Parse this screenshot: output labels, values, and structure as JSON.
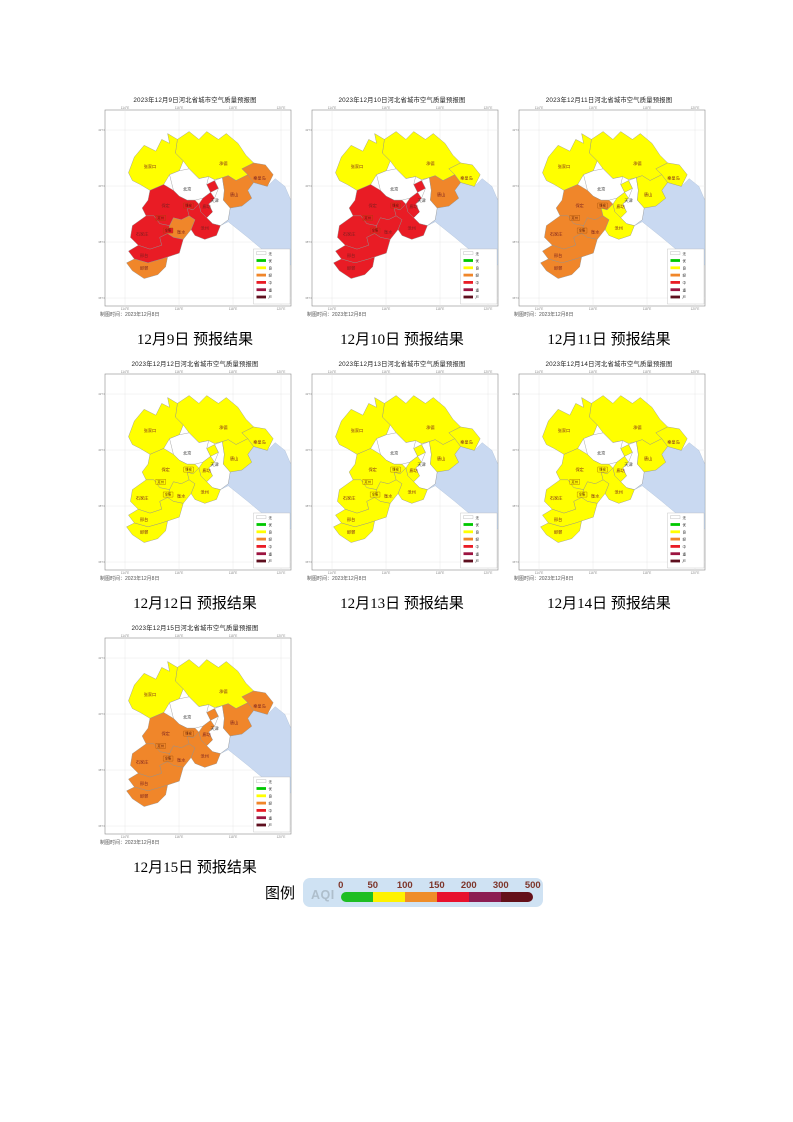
{
  "page": {
    "background": "#ffffff"
  },
  "level_colors": {
    "无": "#ffffff",
    "优": "#00c800",
    "良": "#ffff00",
    "轻度": "#f0862a",
    "中度": "#e91c25",
    "重度": "#9c1440",
    "严重": "#5e0f1e"
  },
  "map_common": {
    "note": "制图时间：2023年12月8日",
    "x_ticks": [
      "114°E",
      "116°E",
      "118°E",
      "120°E"
    ],
    "y_ticks": [
      "42°N",
      "40°N",
      "38°N",
      "36°N"
    ],
    "sea_color": "#c9d9f1",
    "label_color": "#7a1f1f",
    "capital_label_color": "#333333",
    "mini_legend": [
      {
        "label": "无",
        "color": "#ffffff"
      },
      {
        "label": "优",
        "color": "#00c800"
      },
      {
        "label": "良",
        "color": "#ffff00"
      },
      {
        "label": "轻",
        "color": "#f0862a"
      },
      {
        "label": "中",
        "color": "#e91c25"
      },
      {
        "label": "重",
        "color": "#9c1440"
      },
      {
        "label": "严",
        "color": "#5e0f1e"
      }
    ],
    "regions": [
      {
        "id": "zhangjiakou",
        "label": "张家口"
      },
      {
        "id": "chengde",
        "label": "承德"
      },
      {
        "id": "beijing",
        "label": "北京",
        "capital": true
      },
      {
        "id": "tianjin",
        "label": "天津",
        "capital": true
      },
      {
        "id": "tangshan",
        "label": "唐山"
      },
      {
        "id": "qinhuangdao",
        "label": "秦皇岛"
      },
      {
        "id": "langfang",
        "label": "廊坊"
      },
      {
        "id": "baoding",
        "label": "保定"
      },
      {
        "id": "xiongan",
        "label": "雄安",
        "boxed": true
      },
      {
        "id": "dingzhou",
        "label": "定州",
        "boxed": true
      },
      {
        "id": "shijiazhuang",
        "label": "石家庄"
      },
      {
        "id": "xinji",
        "label": "辛集",
        "boxed": true
      },
      {
        "id": "hengshui",
        "label": "衡水"
      },
      {
        "id": "cangzhou",
        "label": "沧州"
      },
      {
        "id": "xingtai",
        "label": "邢台"
      },
      {
        "id": "handan",
        "label": "邯郸"
      }
    ]
  },
  "maps": [
    {
      "title": "2023年12月9日河北省城市空气质量预报图",
      "caption": "12月9日 预报结果",
      "levels": {
        "zhangjiakou": "良",
        "chengde": "良",
        "beijing": "无",
        "tianjin": "无",
        "tangshan": "轻度",
        "qinhuangdao": "轻度",
        "langfang": "中度",
        "baoding": "中度",
        "xiongan": "中度",
        "dingzhou": "中度",
        "shijiazhuang": "中度",
        "xinji": "中度",
        "hengshui": "轻度",
        "cangzhou": "中度",
        "xingtai": "中度",
        "handan": "轻度"
      }
    },
    {
      "title": "2023年12月10日河北省城市空气质量预报图",
      "caption": "12月10日 预报结果",
      "levels": {
        "zhangjiakou": "良",
        "chengde": "良",
        "beijing": "无",
        "tianjin": "无",
        "tangshan": "轻度",
        "qinhuangdao": "良",
        "langfang": "中度",
        "baoding": "中度",
        "xiongan": "中度",
        "dingzhou": "中度",
        "shijiazhuang": "中度",
        "xinji": "中度",
        "hengshui": "中度",
        "cangzhou": "中度",
        "xingtai": "中度",
        "handan": "中度"
      }
    },
    {
      "title": "2023年12月11日河北省城市空气质量预报图",
      "caption": "12月11日 预报结果",
      "levels": {
        "zhangjiakou": "良",
        "chengde": "良",
        "beijing": "无",
        "tianjin": "无",
        "tangshan": "良",
        "qinhuangdao": "良",
        "langfang": "良",
        "baoding": "轻度",
        "xiongan": "轻度",
        "dingzhou": "轻度",
        "shijiazhuang": "轻度",
        "xinji": "轻度",
        "hengshui": "轻度",
        "cangzhou": "良",
        "xingtai": "轻度",
        "handan": "轻度"
      }
    },
    {
      "title": "2023年12月12日河北省城市空气质量预报图",
      "caption": "12月12日 预报结果",
      "levels": {
        "zhangjiakou": "良",
        "chengde": "良",
        "beijing": "无",
        "tianjin": "无",
        "tangshan": "良",
        "qinhuangdao": "良",
        "langfang": "良",
        "baoding": "良",
        "xiongan": "良",
        "dingzhou": "良",
        "shijiazhuang": "良",
        "xinji": "良",
        "hengshui": "良",
        "cangzhou": "良",
        "xingtai": "良",
        "handan": "良"
      }
    },
    {
      "title": "2023年12月13日河北省城市空气质量预报图",
      "caption": "12月13日 预报结果",
      "levels": {
        "zhangjiakou": "良",
        "chengde": "良",
        "beijing": "无",
        "tianjin": "无",
        "tangshan": "良",
        "qinhuangdao": "良",
        "langfang": "良",
        "baoding": "良",
        "xiongan": "良",
        "dingzhou": "良",
        "shijiazhuang": "良",
        "xinji": "良",
        "hengshui": "良",
        "cangzhou": "良",
        "xingtai": "良",
        "handan": "良"
      }
    },
    {
      "title": "2023年12月14日河北省城市空气质量预报图",
      "caption": "12月14日 预报结果",
      "levels": {
        "zhangjiakou": "良",
        "chengde": "良",
        "beijing": "无",
        "tianjin": "无",
        "tangshan": "良",
        "qinhuangdao": "良",
        "langfang": "良",
        "baoding": "良",
        "xiongan": "良",
        "dingzhou": "良",
        "shijiazhuang": "良",
        "xinji": "良",
        "hengshui": "良",
        "cangzhou": "良",
        "xingtai": "良",
        "handan": "良"
      }
    },
    {
      "title": "2023年12月15日河北省城市空气质量预报图",
      "caption": "12月15日 预报结果",
      "levels": {
        "zhangjiakou": "良",
        "chengde": "良",
        "beijing": "无",
        "tianjin": "无",
        "tangshan": "轻度",
        "qinhuangdao": "轻度",
        "langfang": "轻度",
        "baoding": "轻度",
        "xiongan": "轻度",
        "dingzhou": "轻度",
        "shijiazhuang": "轻度",
        "xinji": "轻度",
        "hengshui": "轻度",
        "cangzhou": "轻度",
        "xingtai": "轻度",
        "handan": "轻度"
      }
    }
  ],
  "aqi_scale": {
    "heading": "图例",
    "axis_label": "AQI",
    "ticks": [
      "0",
      "50",
      "100",
      "150",
      "200",
      "300",
      "500"
    ],
    "segments": [
      {
        "from": 0,
        "to": 50,
        "color": "#1fbe23"
      },
      {
        "from": 50,
        "to": 100,
        "color": "#fff200"
      },
      {
        "from": 100,
        "to": 150,
        "color": "#ef8d29"
      },
      {
        "from": 150,
        "to": 200,
        "color": "#e8112d"
      },
      {
        "from": 200,
        "to": 300,
        "color": "#8c1d52"
      },
      {
        "from": 300,
        "to": 500,
        "color": "#641019"
      }
    ],
    "panel_color": "#cfe2f3",
    "tick_color": "#7d352a",
    "axis_label_color": "#aebecb"
  }
}
